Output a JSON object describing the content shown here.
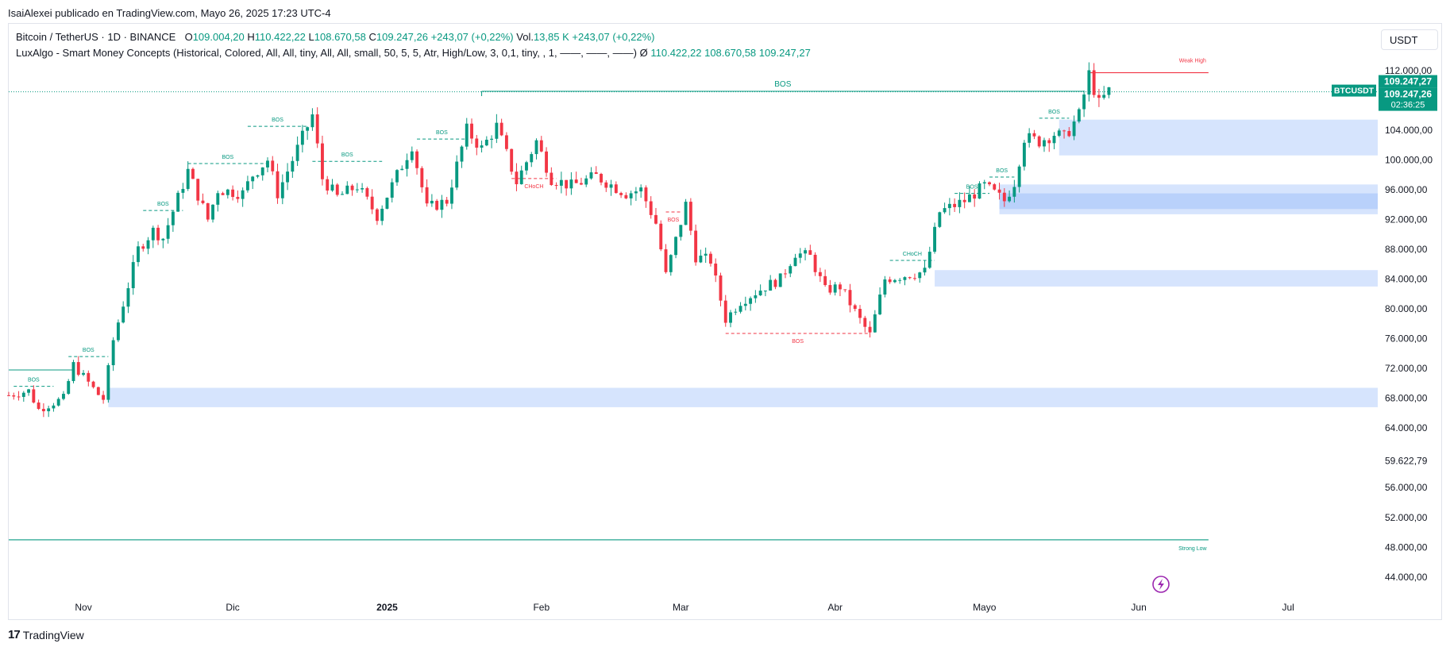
{
  "header": {
    "published": "IsaiAlexei publicado en TradingView.com, Mayo 26, 2025 17:23 UTC-4"
  },
  "legend": {
    "symbol": "Bitcoin / TetherUS · 1D · BINANCE",
    "o_label": "O",
    "o_value": "109.004,20",
    "h_label": "H",
    "h_value": "110.422,22",
    "l_label": "L",
    "l_value": "108.670,58",
    "c_label": "C",
    "c_value": "109.247,26",
    "change": "+243,07 (+0,22%)",
    "vol_label": "Vol.",
    "vol_value": "13,85 K",
    "vol_change": "+243,07 (+0,22%)",
    "indicator": "LuxAlgo - Smart Money Concepts (Historical, Colored, All, All, tiny, All, All, small, 50, 5, 5, Atr, High/Low, 3, 0,1, tiny, , 1, ——, ——, ——)",
    "indicator_symbol": "Ø",
    "ind_v1": "110.422,22",
    "ind_v2": "108.670,58",
    "ind_v3": "109.247,27"
  },
  "currency_button": "USDT",
  "footer": {
    "brand": "TradingView",
    "logo_text": "17"
  },
  "chart_data": {
    "type": "candlestick",
    "symbol": "BTCUSDT",
    "interval": "1D",
    "ylim": [
      41000,
      114000
    ],
    "y_ticks": [
      {
        "v": 112000,
        "label": "112.000,00"
      },
      {
        "v": 104000,
        "label": "104.000,00"
      },
      {
        "v": 100000,
        "label": "100.000,00"
      },
      {
        "v": 96000,
        "label": "96.000,00"
      },
      {
        "v": 92000,
        "label": "92.000,00"
      },
      {
        "v": 88000,
        "label": "88.000,00"
      },
      {
        "v": 84000,
        "label": "84.000,00"
      },
      {
        "v": 80000,
        "label": "80.000,00"
      },
      {
        "v": 76000,
        "label": "76.000,00"
      },
      {
        "v": 72000,
        "label": "72.000,00"
      },
      {
        "v": 68000,
        "label": "68.000,00"
      },
      {
        "v": 64000,
        "label": "64.000,00"
      },
      {
        "v": 59622.79,
        "label": "59.622,79"
      },
      {
        "v": 56000,
        "label": "56.000,00"
      },
      {
        "v": 52000,
        "label": "52.000,00"
      },
      {
        "v": 48000,
        "label": "48.000,00"
      },
      {
        "v": 44000,
        "label": "44.000,00"
      }
    ],
    "x_ticks": [
      {
        "date": "2024-11-01",
        "label": "Nov",
        "bold": false
      },
      {
        "date": "2024-12-01",
        "label": "Dic",
        "bold": false
      },
      {
        "date": "2025-01-01",
        "label": "2025",
        "bold": true
      },
      {
        "date": "2025-02-01",
        "label": "Feb",
        "bold": false
      },
      {
        "date": "2025-03-01",
        "label": "Mar",
        "bold": false
      },
      {
        "date": "2025-04-01",
        "label": "Abr",
        "bold": false
      },
      {
        "date": "2025-05-01",
        "label": "Mayo",
        "bold": false
      },
      {
        "date": "2025-06-01",
        "label": "Jun",
        "bold": false
      },
      {
        "date": "2025-07-01",
        "label": "Jul",
        "bold": false
      }
    ],
    "x_range": [
      "2024-10-17",
      "2025-07-19"
    ],
    "price_labels": [
      {
        "v": 109247.27,
        "text": "109.247,27",
        "color": "#089981"
      },
      {
        "v": 109247.26,
        "text": "109.247,26",
        "color": "#089981"
      }
    ],
    "countdown": "02:36:25",
    "current_price": 109247.27,
    "anchors": [
      [
        "2024-10-17",
        68400
      ],
      [
        "2024-10-21",
        69000
      ],
      [
        "2024-10-23",
        66500
      ],
      [
        "2024-10-28",
        68000
      ],
      [
        "2024-10-30",
        72500
      ],
      [
        "2024-11-04",
        68500
      ],
      [
        "2024-11-05",
        67900
      ],
      [
        "2024-11-07",
        75800
      ],
      [
        "2024-11-12",
        88000
      ],
      [
        "2024-11-15",
        90500
      ],
      [
        "2024-11-17",
        89500
      ],
      [
        "2024-11-22",
        98500
      ],
      [
        "2024-11-26",
        92000
      ],
      [
        "2024-11-28",
        96000
      ],
      [
        "2024-12-03",
        95500
      ],
      [
        "2024-12-05",
        98000
      ],
      [
        "2024-12-08",
        100000
      ],
      [
        "2024-12-10",
        95500
      ],
      [
        "2024-12-14",
        101500
      ],
      [
        "2024-12-17",
        106000
      ],
      [
        "2024-12-19",
        97500
      ],
      [
        "2024-12-22",
        95000
      ],
      [
        "2024-12-26",
        96500
      ],
      [
        "2024-12-30",
        92500
      ],
      [
        "2025-01-06",
        102000
      ],
      [
        "2025-01-09",
        93500
      ],
      [
        "2025-01-13",
        94500
      ],
      [
        "2025-01-17",
        104000
      ],
      [
        "2025-01-20",
        101500
      ],
      [
        "2025-01-23",
        104500
      ],
      [
        "2025-01-27",
        97000
      ],
      [
        "2025-01-31",
        102500
      ],
      [
        "2025-02-03",
        97500
      ],
      [
        "2025-02-07",
        96500
      ],
      [
        "2025-02-12",
        97800
      ],
      [
        "2025-02-18",
        95500
      ],
      [
        "2025-02-21",
        96000
      ],
      [
        "2025-02-24",
        91500
      ],
      [
        "2025-02-26",
        84500
      ],
      [
        "2025-03-02",
        94000
      ],
      [
        "2025-03-04",
        87000
      ],
      [
        "2025-03-07",
        86500
      ],
      [
        "2025-03-10",
        78600
      ],
      [
        "2025-03-13",
        81000
      ],
      [
        "2025-03-18",
        83000
      ],
      [
        "2025-03-21",
        84000
      ],
      [
        "2025-03-24",
        87500
      ],
      [
        "2025-03-27",
        87000
      ],
      [
        "2025-03-30",
        82500
      ],
      [
        "2025-04-02",
        83000
      ],
      [
        "2025-04-06",
        78500
      ],
      [
        "2025-04-08",
        76500
      ],
      [
        "2025-04-11",
        84000
      ],
      [
        "2025-04-15",
        84500
      ],
      [
        "2025-04-19",
        85000
      ],
      [
        "2025-04-22",
        93000
      ],
      [
        "2025-04-27",
        94500
      ],
      [
        "2025-05-01",
        96500
      ],
      [
        "2025-05-05",
        94500
      ],
      [
        "2025-05-07",
        97000
      ],
      [
        "2025-05-09",
        103000
      ],
      [
        "2025-05-12",
        102500
      ],
      [
        "2025-05-15",
        103500
      ],
      [
        "2025-05-17",
        103000
      ],
      [
        "2025-05-20",
        106000
      ],
      [
        "2025-05-22",
        111500
      ],
      [
        "2025-05-24",
        107500
      ],
      [
        "2025-05-26",
        109247
      ]
    ],
    "annotations": {
      "bos": [
        {
          "from": "2024-10-18",
          "to": "2024-10-26",
          "v": 69600,
          "label": "BOS",
          "color": "#089981",
          "style": "dashed"
        },
        {
          "from": "2024-10-29",
          "to": "2024-11-06",
          "v": 73600,
          "label": "BOS",
          "color": "#089981",
          "style": "dashed"
        },
        {
          "from": "2024-11-13",
          "to": "2024-11-21",
          "v": 93200,
          "label": "BOS",
          "color": "#089981",
          "style": "dashed"
        },
        {
          "from": "2024-11-22",
          "to": "2024-12-08",
          "v": 99500,
          "label": "BOS",
          "color": "#089981",
          "style": "dashed"
        },
        {
          "from": "2024-12-04",
          "to": "2024-12-16",
          "v": 104500,
          "label": "BOS",
          "color": "#089981",
          "style": "dashed"
        },
        {
          "from": "2024-12-17",
          "to": "2024-12-31",
          "v": 99800,
          "label": "BOS",
          "color": "#089981",
          "style": "dashed"
        },
        {
          "from": "2025-01-07",
          "to": "2025-01-17",
          "v": 102800,
          "label": "BOS",
          "color": "#089981",
          "style": "dashed"
        },
        {
          "from": "2025-01-20",
          "to": "2025-05-21",
          "v": 109200,
          "label": "BOS",
          "color": "#089981",
          "style": "solid"
        },
        {
          "from": "2025-02-26",
          "to": "2025-03-01",
          "v": 93000,
          "label": "BOS",
          "color": "#f23645",
          "style": "dashed"
        },
        {
          "from": "2025-03-10",
          "to": "2025-04-08",
          "v": 76700,
          "label": "BOS",
          "color": "#f23645",
          "style": "dashed"
        },
        {
          "from": "2025-04-25",
          "to": "2025-05-02",
          "v": 95500,
          "label": "BOS",
          "color": "#089981",
          "style": "dashed"
        },
        {
          "from": "2025-05-02",
          "to": "2025-05-07",
          "v": 97700,
          "label": "BOS",
          "color": "#089981",
          "style": "dashed"
        },
        {
          "from": "2025-05-12",
          "to": "2025-05-18",
          "v": 105600,
          "label": "BOS",
          "color": "#089981",
          "style": "dashed"
        }
      ],
      "choch": [
        {
          "from": "2025-01-26",
          "to": "2025-02-04",
          "v": 97500,
          "label": "CHoCH",
          "color": "#f23645",
          "style": "dashed"
        },
        {
          "from": "2025-04-12",
          "to": "2025-04-21",
          "v": 86500,
          "label": "CHoCH",
          "color": "#089981",
          "style": "dashed"
        }
      ],
      "weak_high": {
        "from": "2025-05-22",
        "to": "2025-06-15",
        "v": 111700,
        "label": "Weak High",
        "color": "#f23645"
      },
      "strong_low": {
        "from": "2024-10-17",
        "to": "2025-06-15",
        "v": 49000,
        "label": "Strong Low",
        "color": "#089981"
      },
      "zones": [
        {
          "from": "2024-11-06",
          "to": "2025-07-20",
          "y1": 66800,
          "y2": 69400,
          "color": "#d6e4fd"
        },
        {
          "from": "2025-04-21",
          "to": "2025-07-20",
          "y1": 83000,
          "y2": 85200,
          "color": "#d6e4fd"
        },
        {
          "from": "2025-05-04",
          "to": "2025-07-20",
          "y1": 92700,
          "y2": 96700,
          "color": "#d6e4fd"
        },
        {
          "from": "2025-05-04",
          "to": "2025-07-20",
          "y1": 93400,
          "y2": 95500,
          "color": "#b9d1fb"
        },
        {
          "from": "2025-05-16",
          "to": "2025-07-20",
          "y1": 100600,
          "y2": 105400,
          "color": "#d6e4fd"
        }
      ],
      "left_line": {
        "from": "2024-10-17",
        "to": "2024-10-30",
        "v": 71800,
        "color": "#089981"
      }
    }
  }
}
